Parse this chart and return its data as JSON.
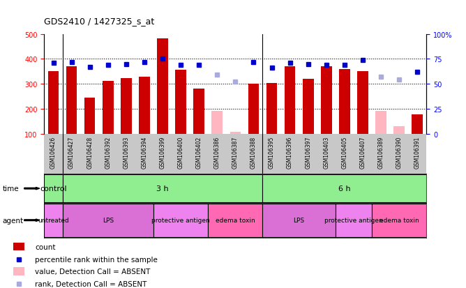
{
  "title": "GDS2410 / 1427325_s_at",
  "samples": [
    "GSM106426",
    "GSM106427",
    "GSM106428",
    "GSM106392",
    "GSM106393",
    "GSM106394",
    "GSM106399",
    "GSM106400",
    "GSM106402",
    "GSM106386",
    "GSM106387",
    "GSM106388",
    "GSM106395",
    "GSM106396",
    "GSM106397",
    "GSM106403",
    "GSM106405",
    "GSM106407",
    "GSM106389",
    "GSM106390",
    "GSM106391"
  ],
  "counts": [
    350,
    370,
    243,
    312,
    322,
    328,
    482,
    355,
    280,
    null,
    null,
    300,
    302,
    370,
    320,
    370,
    360,
    350,
    null,
    null,
    178
  ],
  "counts_absent": [
    null,
    null,
    null,
    null,
    null,
    null,
    null,
    null,
    null,
    190,
    107,
    null,
    null,
    null,
    null,
    null,
    null,
    null,
    192,
    130,
    null
  ],
  "percentile": [
    71,
    72,
    67,
    69,
    70,
    72,
    75,
    69,
    69,
    null,
    null,
    72,
    66,
    71,
    70,
    69,
    69,
    74,
    null,
    null,
    62
  ],
  "percentile_absent": [
    null,
    null,
    null,
    null,
    null,
    null,
    null,
    null,
    null,
    59,
    52,
    null,
    null,
    null,
    null,
    null,
    null,
    null,
    57,
    54,
    null
  ],
  "ylim_left": [
    100,
    500
  ],
  "ylim_right": [
    0,
    100
  ],
  "yticks_left": [
    100,
    200,
    300,
    400,
    500
  ],
  "yticks_right": [
    0,
    25,
    50,
    75,
    100
  ],
  "grid_lines": [
    200,
    300,
    400
  ],
  "bar_color": "#CC0000",
  "bar_absent_color": "#FFB6C1",
  "dot_color": "#0000CC",
  "dot_absent_color": "#AAAADD",
  "plot_bg": "#FFFFFF",
  "tick_area_bg": "#C8C8C8",
  "time_row_bg": "#C8C8C8",
  "agent_row_bg": "#C8C8C8",
  "time_groups": [
    {
      "label": "control",
      "start": 0,
      "end": 0,
      "color": "#90EE90"
    },
    {
      "label": "3 h",
      "start": 1,
      "end": 11,
      "color": "#90EE90"
    },
    {
      "label": "6 h",
      "start": 12,
      "end": 20,
      "color": "#90EE90"
    }
  ],
  "agent_groups": [
    {
      "label": "untreated",
      "start": 0,
      "end": 0,
      "color": "#EE82EE"
    },
    {
      "label": "LPS",
      "start": 1,
      "end": 5,
      "color": "#DA70D6"
    },
    {
      "label": "protective antigen",
      "start": 6,
      "end": 8,
      "color": "#EE82EE"
    },
    {
      "label": "edema toxin",
      "start": 9,
      "end": 11,
      "color": "#FF69B4"
    },
    {
      "label": "LPS",
      "start": 12,
      "end": 15,
      "color": "#DA70D6"
    },
    {
      "label": "protective antigen",
      "start": 16,
      "end": 17,
      "color": "#EE82EE"
    },
    {
      "label": "edema toxin",
      "start": 18,
      "end": 20,
      "color": "#FF69B4"
    }
  ],
  "legend_items": [
    {
      "color": "#CC0000",
      "type": "rect",
      "label": "count"
    },
    {
      "color": "#0000CC",
      "type": "square",
      "label": "percentile rank within the sample"
    },
    {
      "color": "#FFB6C1",
      "type": "rect",
      "label": "value, Detection Call = ABSENT"
    },
    {
      "color": "#AAAADD",
      "type": "square",
      "label": "rank, Detection Call = ABSENT"
    }
  ]
}
